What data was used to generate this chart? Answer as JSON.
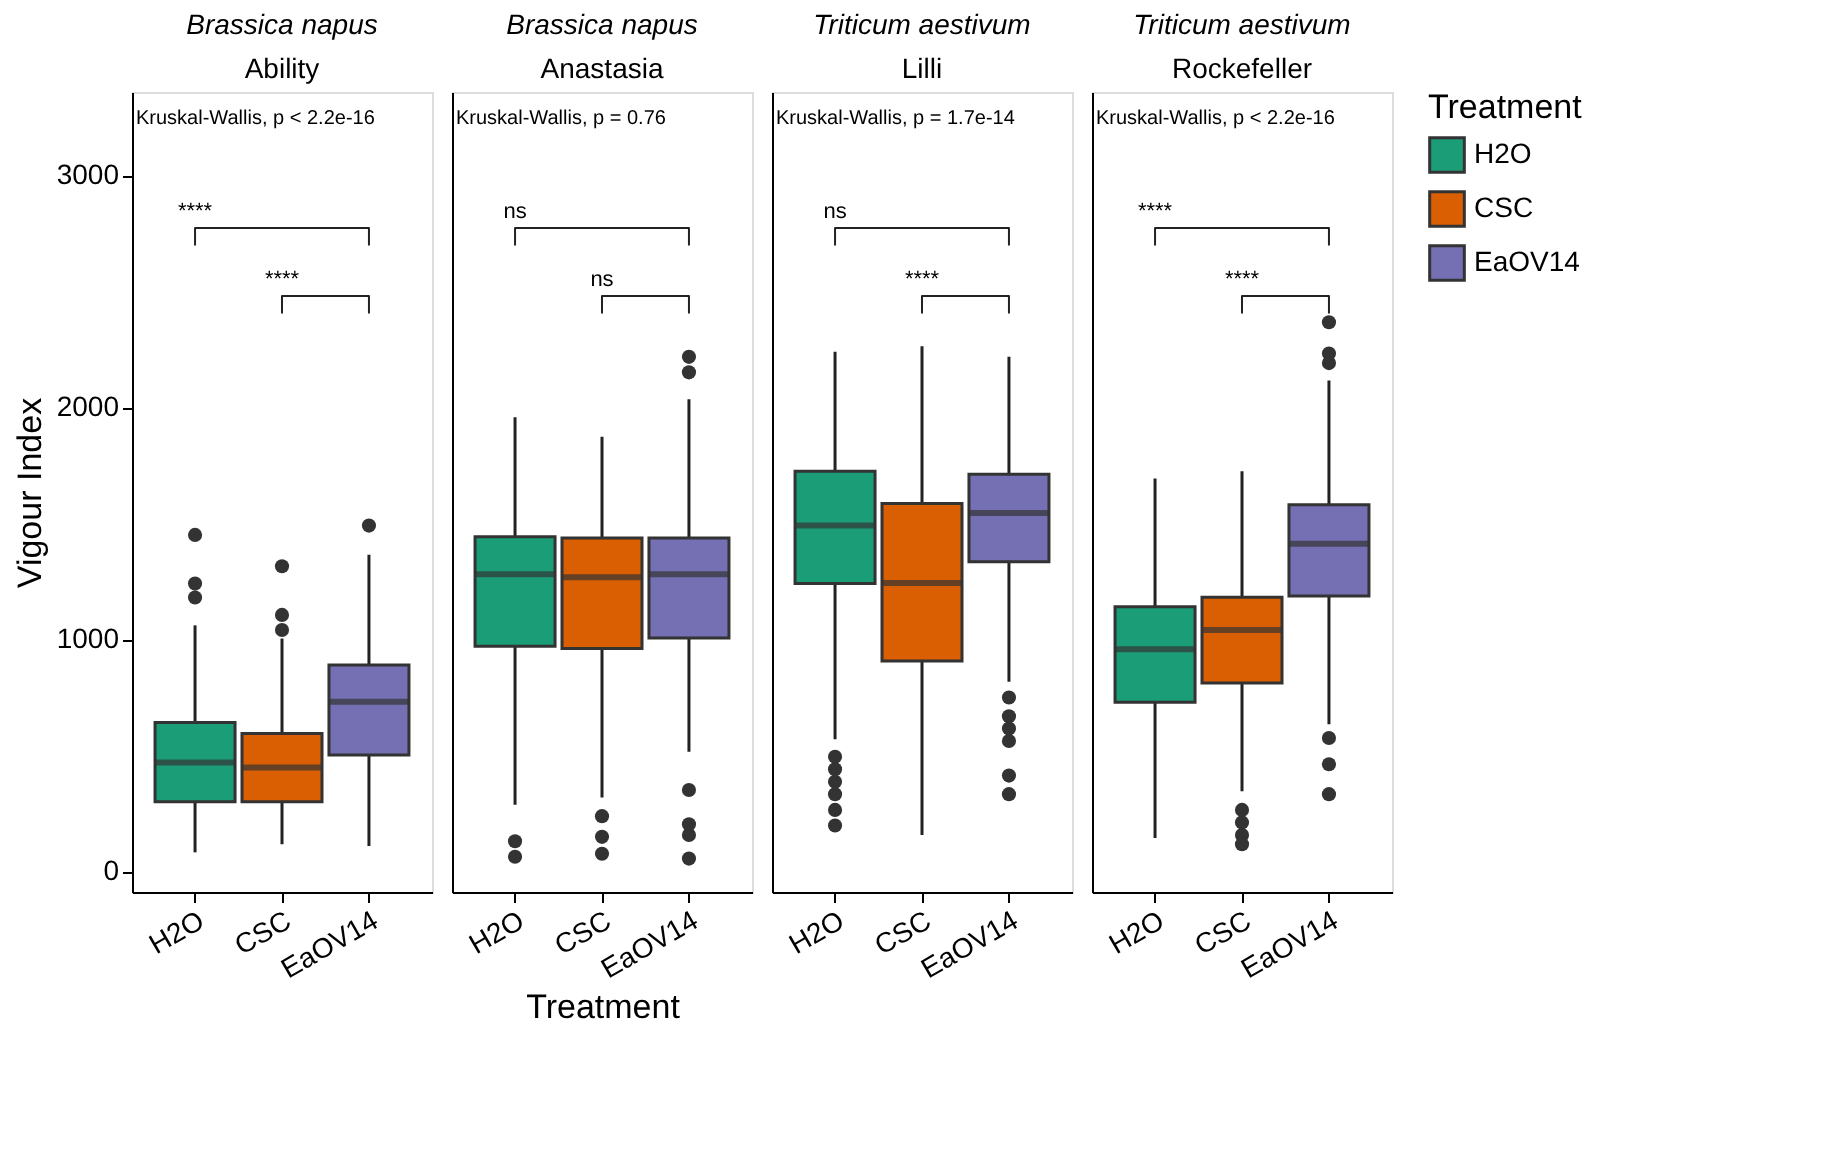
{
  "chart_data": [
    {
      "type": "box",
      "title": "Brassica napus",
      "subtitle": "Ability",
      "ylabel": "Vigour Index",
      "categories": [
        "H2O",
        "CSC",
        "EaOV14"
      ],
      "ylim": [
        -90,
        3360
      ],
      "yticks": [
        0,
        1000,
        2000,
        3000
      ],
      "grid": false,
      "annotations": [
        "Kruskal-Wallis, p < 2.2e-16",
        "****",
        "****"
      ],
      "series": [
        {
          "color": "#1b9e77",
          "boxes": [
            {
              "low": 81,
              "q1": 299,
              "median": 469,
              "q3": 641,
              "high": 1060,
              "outliers": [
                1180,
                1240,
                1450
              ]
            },
            null,
            null
          ]
        },
        {
          "color": "#d95f02",
          "boxes": [
            null,
            {
              "low": 116,
              "q1": 299,
              "median": 447,
              "q3": 593,
              "high": 1003,
              "outliers": [
                1040,
                1105,
                1315
              ]
            },
            null
          ]
        },
        {
          "color": "#7570b3",
          "boxes": [
            null,
            null,
            {
              "low": 108,
              "q1": 501,
              "median": 730,
              "q3": 889,
              "high": 1364,
              "outliers": [
                1490
              ]
            }
          ]
        }
      ]
    },
    {
      "type": "box",
      "title": "Brassica napus",
      "subtitle": "Anastasia",
      "xlabel": "Treatment",
      "categories": [
        "H2O",
        "CSC",
        "EaOV14"
      ],
      "ylim": [
        -90,
        3360
      ],
      "yticks": [
        0,
        1000,
        2000,
        3000
      ],
      "grid": false,
      "tick_labels": "x",
      "annotations": [
        "Kruskal-Wallis, p = 0.76",
        "ns",
        "ns"
      ],
      "series": [
        {
          "color": "#1b9e77",
          "boxes": [
            {
              "low": 286,
              "q1": 970,
              "median": 1280,
              "q3": 1442,
              "high": 1957,
              "outliers": [
                62,
                129
              ]
            },
            null,
            null
          ]
        },
        {
          "color": "#d95f02",
          "boxes": [
            null,
            {
              "low": 318,
              "q1": 960,
              "median": 1267,
              "q3": 1437,
              "high": 1873,
              "outliers": [
                75,
                148,
                237
              ]
            },
            null
          ]
        },
        {
          "color": "#7570b3",
          "boxes": [
            null,
            null,
            {
              "low": 515,
              "q1": 1005,
              "median": 1280,
              "q3": 1437,
              "high": 2035,
              "outliers": [
                54,
                156,
                202,
                350,
                2151,
                2218
              ]
            }
          ]
        }
      ]
    },
    {
      "type": "box",
      "title": "Triticum aestivum",
      "subtitle": "Lilli",
      "categories": [
        "H2O",
        "CSC",
        "EaOV14"
      ],
      "ylim": [
        -90,
        3360
      ],
      "yticks": [
        0,
        1000,
        2000,
        3000
      ],
      "grid": false,
      "tick_labels": "x",
      "annotations": [
        "Kruskal-Wallis, p = 1.7e-14",
        "ns",
        "****"
      ],
      "series": [
        {
          "color": "#1b9e77",
          "boxes": [
            {
              "low": 569,
              "q1": 1240,
              "median": 1491,
              "q3": 1725,
              "high": 2240,
              "outliers": [
                197,
                264,
                332,
                385,
                439,
                493
              ]
            },
            null,
            null
          ]
        },
        {
          "color": "#d95f02",
          "boxes": [
            null,
            {
              "low": 156,
              "q1": 906,
              "median": 1243,
              "q3": 1585,
              "high": 2264
            },
            null
          ]
        },
        {
          "color": "#7570b3",
          "boxes": [
            null,
            null,
            {
              "low": 817,
              "q1": 1334,
              "median": 1544,
              "q3": 1712,
              "high": 2218,
              "outliers": [
                332,
                412,
                561,
                615,
                668,
                749
              ]
            }
          ]
        }
      ]
    },
    {
      "type": "box",
      "title": "Triticum aestivum",
      "subtitle": "Rockefeller",
      "legend_title": "Treatment",
      "legend": "right",
      "categories": [
        "H2O",
        "CSC",
        "EaOV14"
      ],
      "ylim": [
        -90,
        3360
      ],
      "yticks": [
        0,
        1000,
        2000,
        3000
      ],
      "grid": false,
      "tick_labels": "x",
      "annotations": [
        "Kruskal-Wallis, p < 2.2e-16",
        "****",
        "****"
      ],
      "series": [
        {
          "name": "H2O",
          "color": "#1b9e77",
          "boxes": [
            {
              "low": 143,
              "q1": 728,
              "median": 957,
              "q3": 1140,
              "high": 1693
            },
            null,
            null
          ]
        },
        {
          "name": "CSC",
          "color": "#d95f02",
          "boxes": [
            null,
            {
              "low": 345,
              "q1": 811,
              "median": 1040,
              "q3": 1181,
              "high": 1725,
              "outliers": [
                116,
                156,
                210,
                264
              ]
            },
            null
          ]
        },
        {
          "name": "EaOV14",
          "color": "#7570b3",
          "boxes": [
            null,
            null,
            {
              "low": 633,
              "q1": 1186,
              "median": 1412,
              "q3": 1580,
              "high": 2116,
              "outliers": [
                332,
                461,
                574,
                2191,
                2232,
                2367
              ]
            }
          ]
        }
      ]
    }
  ]
}
